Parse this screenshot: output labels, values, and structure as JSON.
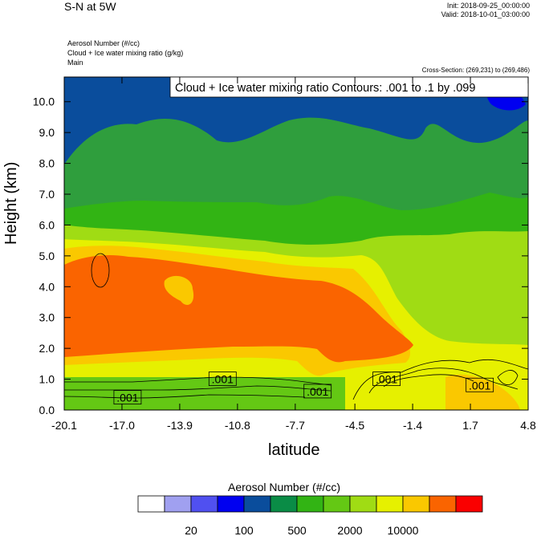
{
  "header": {
    "title": "S-N at 5W",
    "init": "Init: 2018-09-25_00:00:00",
    "valid": "Valid: 2018-10-01_03:00:00",
    "fields": [
      "Aerosol Number   (#/cc)",
      "Cloud + Ice water mixing ratio   (g/kg)",
      "Main"
    ],
    "cross_section": "Cross-Section: (269,231) to (269,486)"
  },
  "chart_data": {
    "type": "heatmap",
    "title": "",
    "xlabel": "latitude",
    "ylabel": "Height (km)",
    "x_ticks": [
      "-20.1",
      "-17.0",
      "-13.9",
      "-10.8",
      "-7.7",
      "-4.5",
      "-1.4",
      "1.7",
      "4.8"
    ],
    "y_ticks": [
      "0.0",
      "1.0",
      "2.0",
      "3.0",
      "4.0",
      "5.0",
      "6.0",
      "7.0",
      "8.0",
      "9.0",
      "10.0"
    ],
    "xlim": [
      -20.1,
      4.8
    ],
    "ylim": [
      0.0,
      10.8
    ],
    "contour_legend": "Cloud + Ice water mixing ratio Contours: .001 to .1 by .099",
    "contour_labels": [
      {
        "text": ".001",
        "lat": -16.7,
        "height": 0.4
      },
      {
        "text": ".001",
        "lat": -11.6,
        "height": 1.0
      },
      {
        "text": ".001",
        "lat": -6.5,
        "height": 0.6
      },
      {
        "text": ".001",
        "lat": -2.8,
        "height": 1.0
      },
      {
        "text": ".001",
        "lat": 2.2,
        "height": 0.8
      }
    ],
    "colorbar": {
      "title": "Aerosol Number  (#/cc)",
      "colors": [
        "#ffffff",
        "#a0a0f0",
        "#5050f0",
        "#0000f0",
        "#0a4d9c",
        "#0a8c46",
        "#32b414",
        "#64c814",
        "#a0dc14",
        "#e6f000",
        "#fac800",
        "#fa6400",
        "#fa0000"
      ],
      "labels": [
        {
          "text": "20",
          "after_box": 2
        },
        {
          "text": "100",
          "after_box": 4
        },
        {
          "text": "500",
          "after_box": 6
        },
        {
          "text": "2000",
          "after_box": 8
        },
        {
          "text": "10000",
          "after_box": 10
        }
      ]
    },
    "field_colors": {
      "top": "#0a4d9c",
      "upper_green": "#2f9e3d",
      "mid_green": "#32b414",
      "light_green": "#a0dc14",
      "yellow": "#e6f000",
      "gold": "#fac800",
      "orange": "#fa6400",
      "blue_patch": "#0000f0",
      "near_surface": "#64c814"
    }
  }
}
